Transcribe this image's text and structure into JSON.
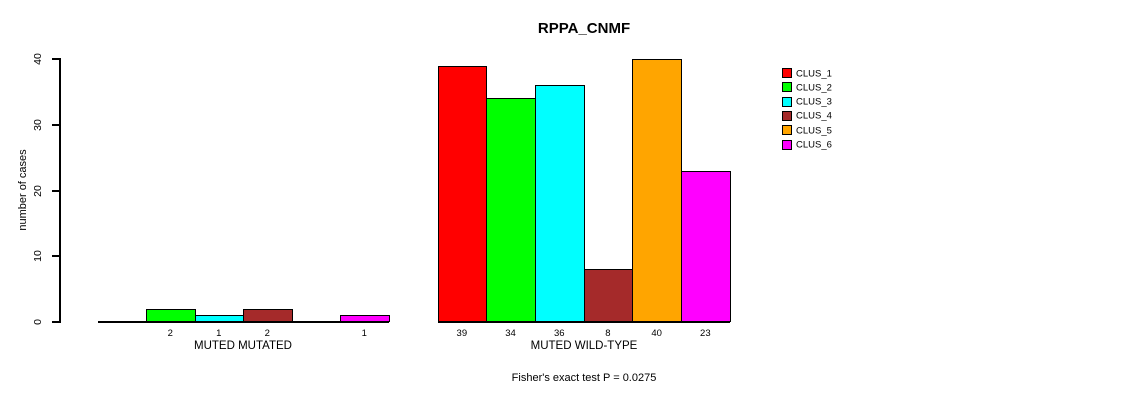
{
  "chart_data": {
    "type": "bar",
    "title": "RPPA_CNMF",
    "ylabel": "number of cases",
    "xlabel": "",
    "ylim": [
      0,
      40
    ],
    "yticks": [
      0,
      10,
      20,
      30,
      40
    ],
    "grid": false,
    "legend_position": "right",
    "series_names": [
      "CLUS_1",
      "CLUS_2",
      "CLUS_3",
      "CLUS_4",
      "CLUS_5",
      "CLUS_6"
    ],
    "colors": [
      "#FF0000",
      "#00FF00",
      "#00FFFF",
      "#A52A2A",
      "#FFA500",
      "#FF00FF"
    ],
    "groups": [
      {
        "label": "MUTED MUTATED",
        "values": [
          0,
          2,
          1,
          2,
          0,
          1
        ],
        "bar_labels": [
          "",
          "2",
          "1",
          "2",
          "",
          "1"
        ]
      },
      {
        "label": "MUTED WILD-TYPE",
        "values": [
          39,
          34,
          36,
          8,
          40,
          23
        ],
        "bar_labels": [
          "39",
          "34",
          "36",
          "8",
          "40",
          "23"
        ]
      }
    ],
    "annotation": "Fisher's exact test P = 0.0275"
  }
}
